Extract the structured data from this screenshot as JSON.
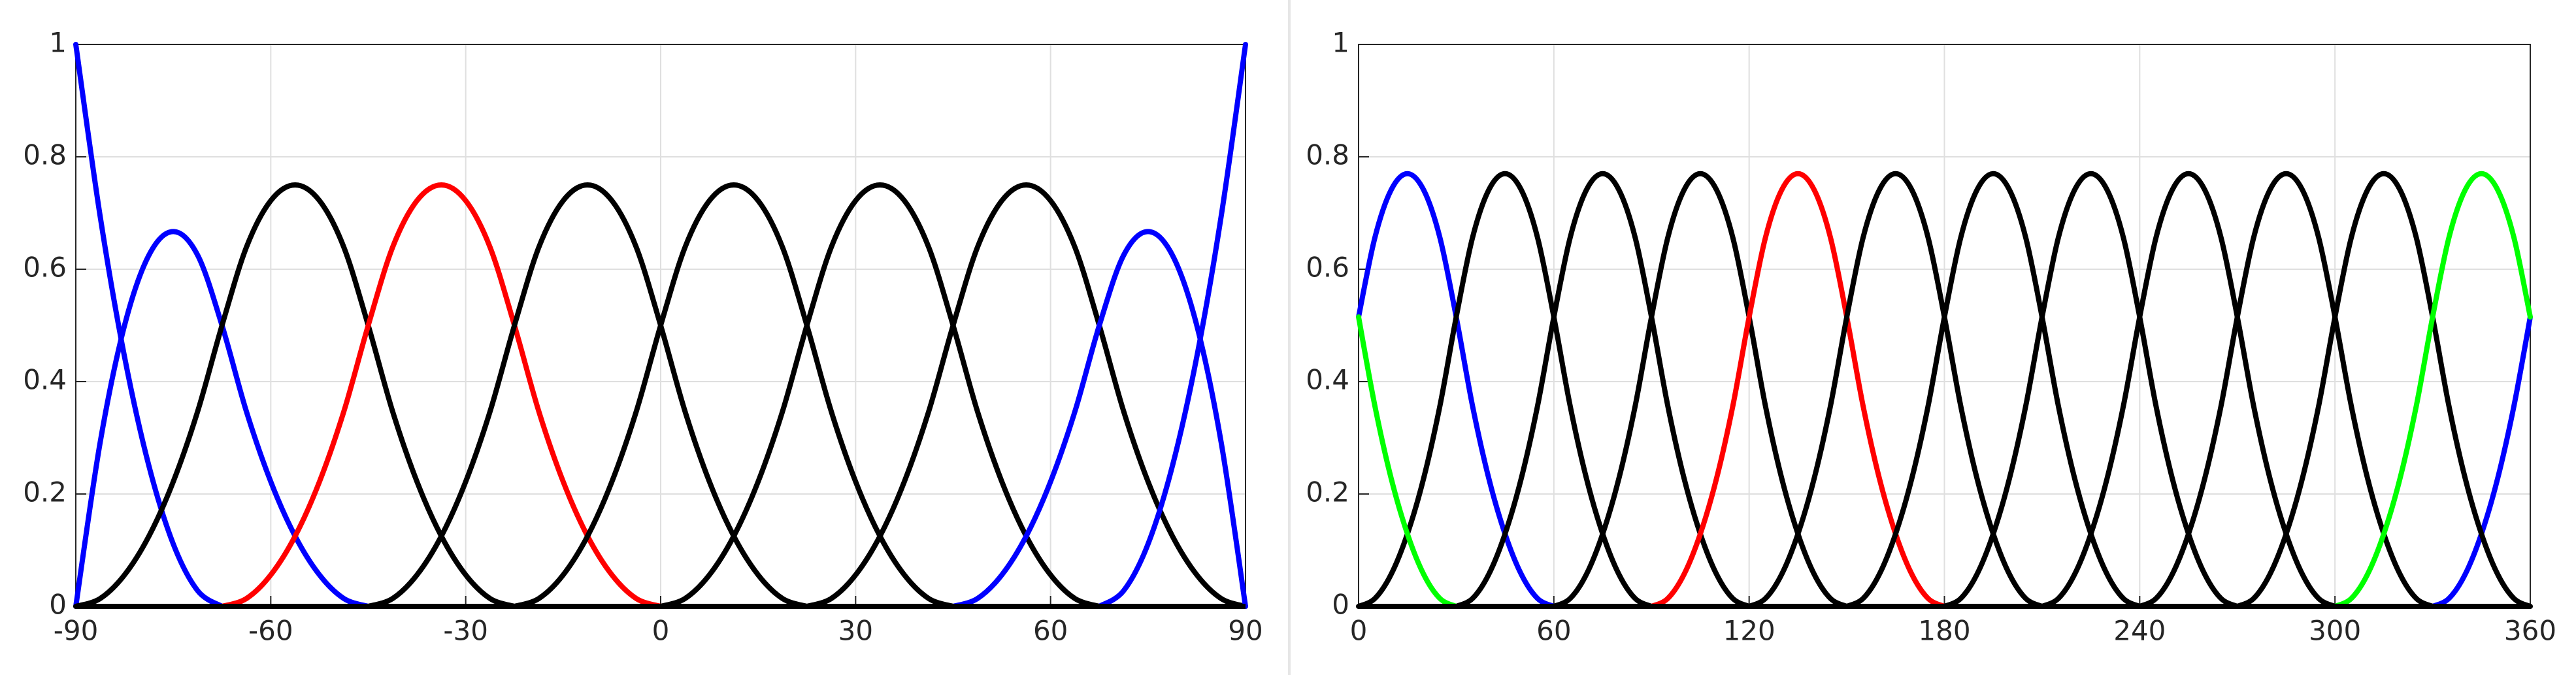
{
  "chart_data": [
    {
      "type": "line",
      "xlim": [
        -90,
        90
      ],
      "ylim": [
        0,
        1
      ],
      "xticks": [
        -90,
        -60,
        -30,
        0,
        30,
        60,
        90
      ],
      "yticks": [
        0,
        0.2,
        0.4,
        0.6,
        0.8,
        1
      ],
      "grid": true,
      "series": [
        {
          "color": "#0000ff",
          "x": [
            -90,
            -86.25,
            -82.5,
            -78.75,
            -75,
            -71.25,
            -67.5
          ],
          "values": [
            1,
            0.694,
            0.444,
            0.25,
            0.111,
            0.028,
            0
          ]
        },
        {
          "color": "#0000ff",
          "x": [
            -90,
            -86.25,
            -82.5,
            -78.75,
            -75,
            -71.25,
            -67.5,
            -63.75,
            -60,
            -56.25,
            -52.5,
            -48.75,
            -45
          ],
          "values": [
            0,
            0.292,
            0.5,
            0.625,
            0.667,
            0.625,
            0.5,
            0.347,
            0.222,
            0.125,
            0.056,
            0.014,
            0
          ]
        },
        {
          "color": "#000000",
          "x": [
            -90,
            -86.25,
            -82.5,
            -78.75,
            -75,
            -71.25,
            -67.5,
            -63.75,
            -60,
            -56.25,
            -52.5,
            -48.75,
            -45,
            -41.25,
            -37.5,
            -33.75,
            -30,
            -26.25,
            -22.5
          ],
          "values": [
            0,
            0.014,
            0.056,
            0.125,
            0.222,
            0.347,
            0.5,
            0.639,
            0.722,
            0.75,
            0.722,
            0.639,
            0.5,
            0.347,
            0.222,
            0.125,
            0.056,
            0.014,
            0
          ]
        },
        {
          "color": "#ff0000",
          "x": [
            -67.5,
            -63.75,
            -60,
            -56.25,
            -52.5,
            -48.75,
            -45,
            -41.25,
            -37.5,
            -33.75,
            -30,
            -26.25,
            -22.5,
            -18.75,
            -15,
            -11.25,
            -7.5,
            -3.75,
            0
          ],
          "values": [
            0,
            0.014,
            0.056,
            0.125,
            0.222,
            0.347,
            0.5,
            0.639,
            0.722,
            0.75,
            0.722,
            0.639,
            0.5,
            0.347,
            0.222,
            0.125,
            0.056,
            0.014,
            0
          ]
        },
        {
          "color": "#000000",
          "x": [
            -45,
            -41.25,
            -37.5,
            -33.75,
            -30,
            -26.25,
            -22.5,
            -18.75,
            -15,
            -11.25,
            -7.5,
            -3.75,
            0,
            3.75,
            7.5,
            11.25,
            15,
            18.75,
            22.5
          ],
          "values": [
            0,
            0.014,
            0.056,
            0.125,
            0.222,
            0.347,
            0.5,
            0.639,
            0.722,
            0.75,
            0.722,
            0.639,
            0.5,
            0.347,
            0.222,
            0.125,
            0.056,
            0.014,
            0
          ]
        },
        {
          "color": "#000000",
          "x": [
            -22.5,
            -18.75,
            -15,
            -11.25,
            -7.5,
            -3.75,
            0,
            3.75,
            7.5,
            11.25,
            15,
            18.75,
            22.5,
            26.25,
            30,
            33.75,
            37.5,
            41.25,
            45
          ],
          "values": [
            0,
            0.014,
            0.056,
            0.125,
            0.222,
            0.347,
            0.5,
            0.639,
            0.722,
            0.75,
            0.722,
            0.639,
            0.5,
            0.347,
            0.222,
            0.125,
            0.056,
            0.014,
            0
          ]
        },
        {
          "color": "#000000",
          "x": [
            0,
            3.75,
            7.5,
            11.25,
            15,
            18.75,
            22.5,
            26.25,
            30,
            33.75,
            37.5,
            41.25,
            45,
            48.75,
            52.5,
            56.25,
            60,
            63.75,
            67.5
          ],
          "values": [
            0,
            0.014,
            0.056,
            0.125,
            0.222,
            0.347,
            0.5,
            0.639,
            0.722,
            0.75,
            0.722,
            0.639,
            0.5,
            0.347,
            0.222,
            0.125,
            0.056,
            0.014,
            0
          ]
        },
        {
          "color": "#000000",
          "x": [
            22.5,
            26.25,
            30,
            33.75,
            37.5,
            41.25,
            45,
            48.75,
            52.5,
            56.25,
            60,
            63.75,
            67.5,
            71.25,
            75,
            78.75,
            82.5,
            86.25,
            90
          ],
          "values": [
            0,
            0.014,
            0.056,
            0.125,
            0.222,
            0.347,
            0.5,
            0.639,
            0.722,
            0.75,
            0.722,
            0.639,
            0.5,
            0.347,
            0.222,
            0.125,
            0.056,
            0.014,
            0
          ]
        },
        {
          "color": "#0000ff",
          "x": [
            45,
            48.75,
            52.5,
            56.25,
            60,
            63.75,
            67.5,
            71.25,
            75,
            78.75,
            82.5,
            86.25,
            90
          ],
          "values": [
            0,
            0.014,
            0.056,
            0.125,
            0.222,
            0.347,
            0.5,
            0.625,
            0.667,
            0.625,
            0.5,
            0.292,
            0
          ]
        },
        {
          "color": "#0000ff",
          "x": [
            67.5,
            71.25,
            75,
            78.75,
            82.5,
            86.25,
            90
          ],
          "values": [
            0,
            0.028,
            0.111,
            0.25,
            0.444,
            0.694,
            1
          ]
        }
      ]
    },
    {
      "type": "line",
      "xlim": [
        0,
        360
      ],
      "ylim": [
        0,
        1
      ],
      "xticks": [
        0,
        60,
        120,
        180,
        240,
        300,
        360
      ],
      "yticks": [
        0,
        0.2,
        0.4,
        0.6,
        0.8,
        1
      ],
      "grid": true,
      "series": [
        {
          "color": "#0000ff",
          "x": [
            0,
            5,
            10,
            15,
            20,
            25,
            30,
            35,
            40,
            45,
            50,
            55,
            60,
            null,
            330,
            335,
            340,
            345,
            350,
            355,
            360
          ],
          "values": [
            0.515,
            0.656,
            0.741,
            0.77,
            0.741,
            0.656,
            0.515,
            0.357,
            0.228,
            0.129,
            0.057,
            0.014,
            0,
            null,
            0,
            0.014,
            0.057,
            0.129,
            0.228,
            0.357,
            0.515
          ]
        },
        {
          "color": "#000000",
          "x": [
            0,
            5,
            10,
            15,
            20,
            25,
            30,
            35,
            40,
            45,
            50,
            55,
            60,
            65,
            70,
            75,
            80,
            85,
            90
          ],
          "values": [
            0,
            0.014,
            0.057,
            0.129,
            0.228,
            0.357,
            0.515,
            0.656,
            0.741,
            0.77,
            0.741,
            0.656,
            0.515,
            0.357,
            0.228,
            0.129,
            0.057,
            0.014,
            0
          ]
        },
        {
          "color": "#000000",
          "x": [
            30,
            35,
            40,
            45,
            50,
            55,
            60,
            65,
            70,
            75,
            80,
            85,
            90,
            95,
            100,
            105,
            110,
            115,
            120
          ],
          "values": [
            0,
            0.014,
            0.057,
            0.129,
            0.228,
            0.357,
            0.515,
            0.656,
            0.741,
            0.77,
            0.741,
            0.656,
            0.515,
            0.357,
            0.228,
            0.129,
            0.057,
            0.014,
            0
          ]
        },
        {
          "color": "#000000",
          "x": [
            60,
            65,
            70,
            75,
            80,
            85,
            90,
            95,
            100,
            105,
            110,
            115,
            120,
            125,
            130,
            135,
            140,
            145,
            150
          ],
          "values": [
            0,
            0.014,
            0.057,
            0.129,
            0.228,
            0.357,
            0.515,
            0.656,
            0.741,
            0.77,
            0.741,
            0.656,
            0.515,
            0.357,
            0.228,
            0.129,
            0.057,
            0.014,
            0
          ]
        },
        {
          "color": "#ff0000",
          "x": [
            90,
            95,
            100,
            105,
            110,
            115,
            120,
            125,
            130,
            135,
            140,
            145,
            150,
            155,
            160,
            165,
            170,
            175,
            180
          ],
          "values": [
            0,
            0.014,
            0.057,
            0.129,
            0.228,
            0.357,
            0.515,
            0.656,
            0.741,
            0.77,
            0.741,
            0.656,
            0.515,
            0.357,
            0.228,
            0.129,
            0.057,
            0.014,
            0
          ]
        },
        {
          "color": "#000000",
          "x": [
            120,
            125,
            130,
            135,
            140,
            145,
            150,
            155,
            160,
            165,
            170,
            175,
            180,
            185,
            190,
            195,
            200,
            205,
            210
          ],
          "values": [
            0,
            0.014,
            0.057,
            0.129,
            0.228,
            0.357,
            0.515,
            0.656,
            0.741,
            0.77,
            0.741,
            0.656,
            0.515,
            0.357,
            0.228,
            0.129,
            0.057,
            0.014,
            0
          ]
        },
        {
          "color": "#000000",
          "x": [
            150,
            155,
            160,
            165,
            170,
            175,
            180,
            185,
            190,
            195,
            200,
            205,
            210,
            215,
            220,
            225,
            230,
            235,
            240
          ],
          "values": [
            0,
            0.014,
            0.057,
            0.129,
            0.228,
            0.357,
            0.515,
            0.656,
            0.741,
            0.77,
            0.741,
            0.656,
            0.515,
            0.357,
            0.228,
            0.129,
            0.057,
            0.014,
            0
          ]
        },
        {
          "color": "#000000",
          "x": [
            180,
            185,
            190,
            195,
            200,
            205,
            210,
            215,
            220,
            225,
            230,
            235,
            240,
            245,
            250,
            255,
            260,
            265,
            270
          ],
          "values": [
            0,
            0.014,
            0.057,
            0.129,
            0.228,
            0.357,
            0.515,
            0.656,
            0.741,
            0.77,
            0.741,
            0.656,
            0.515,
            0.357,
            0.228,
            0.129,
            0.057,
            0.014,
            0
          ]
        },
        {
          "color": "#000000",
          "x": [
            210,
            215,
            220,
            225,
            230,
            235,
            240,
            245,
            250,
            255,
            260,
            265,
            270,
            275,
            280,
            285,
            290,
            295,
            300
          ],
          "values": [
            0,
            0.014,
            0.057,
            0.129,
            0.228,
            0.357,
            0.515,
            0.656,
            0.741,
            0.77,
            0.741,
            0.656,
            0.515,
            0.357,
            0.228,
            0.129,
            0.057,
            0.014,
            0
          ]
        },
        {
          "color": "#000000",
          "x": [
            240,
            245,
            250,
            255,
            260,
            265,
            270,
            275,
            280,
            285,
            290,
            295,
            300,
            305,
            310,
            315,
            320,
            325,
            330
          ],
          "values": [
            0,
            0.014,
            0.057,
            0.129,
            0.228,
            0.357,
            0.515,
            0.656,
            0.741,
            0.77,
            0.741,
            0.656,
            0.515,
            0.357,
            0.228,
            0.129,
            0.057,
            0.014,
            0
          ]
        },
        {
          "color": "#000000",
          "x": [
            270,
            275,
            280,
            285,
            290,
            295,
            300,
            305,
            310,
            315,
            320,
            325,
            330,
            335,
            340,
            345,
            350,
            355,
            360
          ],
          "values": [
            0,
            0.014,
            0.057,
            0.129,
            0.228,
            0.357,
            0.515,
            0.656,
            0.741,
            0.77,
            0.741,
            0.656,
            0.515,
            0.357,
            0.228,
            0.129,
            0.057,
            0.014,
            0
          ]
        },
        {
          "color": "#00ff00",
          "x": [
            0,
            5,
            10,
            15,
            20,
            25,
            30,
            null,
            300,
            305,
            310,
            315,
            320,
            325,
            330,
            335,
            340,
            345,
            350,
            355,
            360
          ],
          "values": [
            0.515,
            0.357,
            0.228,
            0.129,
            0.057,
            0.014,
            0,
            null,
            0,
            0.014,
            0.057,
            0.129,
            0.228,
            0.357,
            0.515,
            0.656,
            0.741,
            0.77,
            0.741,
            0.656,
            0.515
          ]
        }
      ]
    }
  ]
}
